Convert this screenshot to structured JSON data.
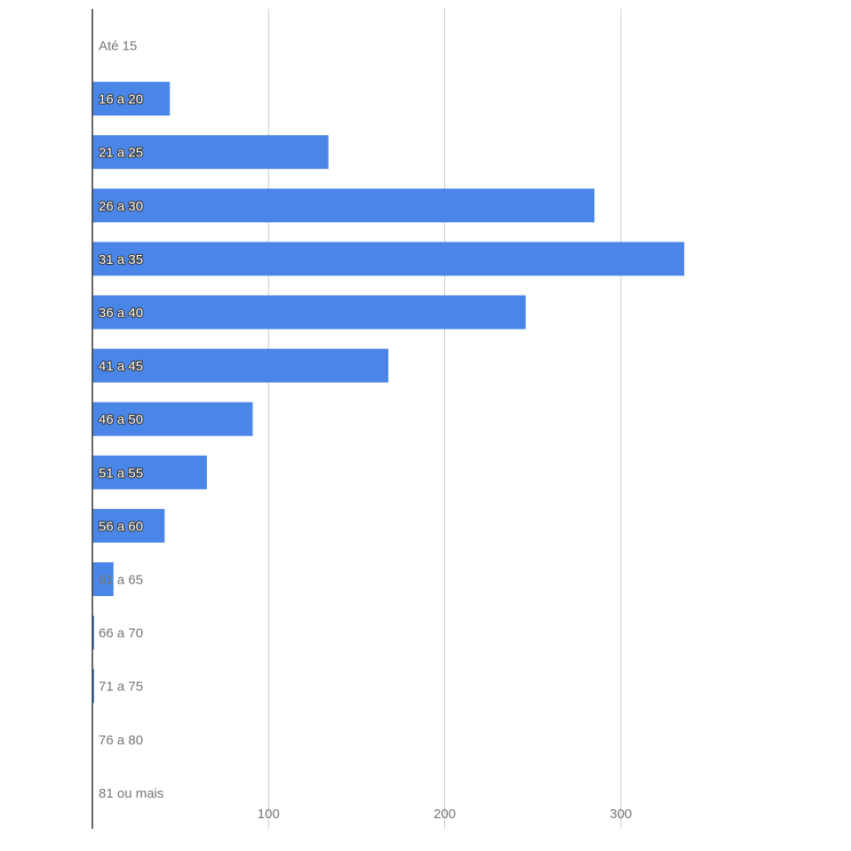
{
  "chart_data": {
    "type": "bar",
    "orientation": "horizontal",
    "categories": [
      "Até 15",
      "16 a 20",
      "21 a 25",
      "26 a 30",
      "31 a 35",
      "36 a 40",
      "41 a 45",
      "46 a 50",
      "51 a 55",
      "56 a 60",
      "61 a 65",
      "66 a 70",
      "71 a 75",
      "76 a 80",
      "81 ou mais"
    ],
    "values": [
      0,
      44,
      134,
      285,
      336,
      246,
      168,
      91,
      65,
      41,
      12,
      1,
      1,
      0,
      0
    ],
    "x_ticks": [
      "100",
      "200",
      "300"
    ],
    "xlim": [
      0,
      400
    ],
    "title": "",
    "xlabel": "",
    "ylabel": "",
    "grid": true,
    "legend": "none",
    "bar_color": "#4a86e8"
  }
}
